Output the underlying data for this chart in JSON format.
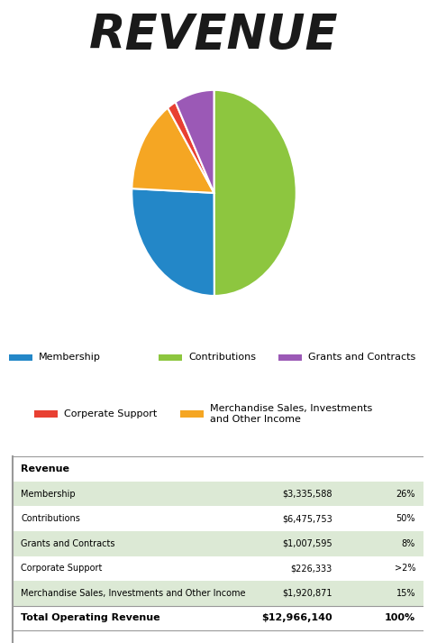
{
  "title": "REVENUE",
  "pie_labels": [
    "Contributions",
    "Membership",
    "Merchandise Sales",
    "Corporate Support",
    "Grants and Contracts"
  ],
  "pie_values": [
    6475753,
    3335588,
    1920871,
    226333,
    1007595
  ],
  "pie_colors": [
    "#8dc63f",
    "#2387c8",
    "#f5a623",
    "#e84032",
    "#9b59b6"
  ],
  "legend_order": [
    1,
    0,
    4,
    2,
    3
  ],
  "legend_labels_row1": [
    "Membership",
    "Contributions",
    "Grants and Contracts"
  ],
  "legend_colors_row1": [
    "#2387c8",
    "#8dc63f",
    "#9b59b6"
  ],
  "legend_labels_row2": [
    "Corperate Support",
    "Merchandise Sales, Investments\nand Other Income"
  ],
  "legend_colors_row2": [
    "#e84032",
    "#f5a623"
  ],
  "table_header": "Revenue",
  "table_rows": [
    [
      "Membership",
      "$3,335,588",
      "26%"
    ],
    [
      "Contributions",
      "$6,475,753",
      "50%"
    ],
    [
      "Grants and Contracts",
      "$1,007,595",
      "8%"
    ],
    [
      "Corporate Support",
      "$226,333",
      ">2%"
    ],
    [
      "Merchandise Sales, Investments and Other Income",
      "$1,920,871",
      "15%"
    ]
  ],
  "table_footer": [
    "Total Operating Revenue",
    "$12,966,140",
    "100%"
  ],
  "row_colors": [
    "#dce9d5",
    "#ffffff",
    "#dce9d5",
    "#ffffff",
    "#dce9d5"
  ],
  "background_color": "#ffffff",
  "title_fontsize": 38,
  "title_style": "italic",
  "title_weight": "bold"
}
